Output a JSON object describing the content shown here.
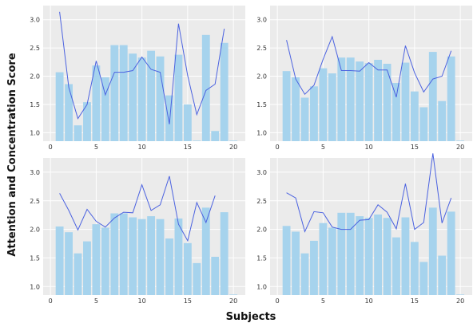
{
  "figure": {
    "ylabel": "Attention and Concentration Score",
    "xlabel": "Subjects",
    "colors": {
      "bar": "#a6d3ed",
      "line": "#4b62e0",
      "panel_bg": "#ebebeb",
      "grid": "#ffffff"
    }
  },
  "chart_data": [
    {
      "type": "bar",
      "x": [
        1,
        2,
        3,
        4,
        5,
        6,
        7,
        8,
        9,
        10,
        11,
        12,
        13,
        14,
        15,
        16,
        17,
        18,
        19,
        20
      ],
      "xticks": [
        0,
        5,
        10,
        15,
        20
      ],
      "yticks": [
        1.0,
        1.5,
        2.0,
        2.5,
        3.0
      ],
      "xlim": [
        -0.8,
        21.3
      ],
      "ylim": [
        0.85,
        3.25
      ],
      "grid": true,
      "series": [
        {
          "kind": "bar",
          "values": [
            2.07,
            1.86,
            1.13,
            1.54,
            2.19,
            1.98,
            2.55,
            2.55,
            2.4,
            2.33,
            2.45,
            2.35,
            1.66,
            2.38,
            1.5,
            0.86,
            2.73,
            1.03,
            2.59,
            0.86
          ]
        },
        {
          "kind": "line",
          "values": [
            3.14,
            1.8,
            1.25,
            1.5,
            2.27,
            1.67,
            2.07,
            2.07,
            2.1,
            2.34,
            2.12,
            2.07,
            1.15,
            2.93,
            2.01,
            1.32,
            1.75,
            1.86,
            2.84,
            null
          ]
        }
      ]
    },
    {
      "type": "bar",
      "x": [
        1,
        2,
        3,
        4,
        5,
        6,
        7,
        8,
        9,
        10,
        11,
        12,
        13,
        14,
        15,
        16,
        17,
        18,
        19,
        20
      ],
      "xticks": [
        0,
        5,
        10,
        15,
        20
      ],
      "yticks": [
        1.0,
        1.5,
        2.0,
        2.5,
        3.0
      ],
      "xlim": [
        -0.8,
        21.3
      ],
      "ylim": [
        0.85,
        3.25
      ],
      "grid": true,
      "series": [
        {
          "kind": "bar",
          "values": [
            2.09,
            1.98,
            1.62,
            1.82,
            2.14,
            2.05,
            2.33,
            2.33,
            2.26,
            2.23,
            2.29,
            2.22,
            1.88,
            2.24,
            1.73,
            1.45,
            2.43,
            1.56,
            2.35,
            0.86
          ]
        },
        {
          "kind": "line",
          "values": [
            2.64,
            1.95,
            1.68,
            1.84,
            2.3,
            2.7,
            2.1,
            2.1,
            2.09,
            2.24,
            2.11,
            2.11,
            1.63,
            2.54,
            2.06,
            1.72,
            1.95,
            2.0,
            2.45,
            null
          ]
        }
      ]
    },
    {
      "type": "bar",
      "x": [
        1,
        2,
        3,
        4,
        5,
        6,
        7,
        8,
        9,
        10,
        11,
        12,
        13,
        14,
        15,
        16,
        17,
        18,
        19,
        20
      ],
      "xticks": [
        0,
        5,
        10,
        15,
        20
      ],
      "yticks": [
        1.0,
        1.5,
        2.0,
        2.5,
        3.0
      ],
      "xlim": [
        -0.8,
        21.3
      ],
      "ylim": [
        0.85,
        3.25
      ],
      "grid": true,
      "series": [
        {
          "kind": "bar",
          "values": [
            2.05,
            1.95,
            1.58,
            1.79,
            2.09,
            2.03,
            2.28,
            2.28,
            2.21,
            2.18,
            2.23,
            2.18,
            1.84,
            2.19,
            1.76,
            1.41,
            2.38,
            1.52,
            2.3,
            0.86
          ]
        },
        {
          "kind": "line",
          "values": [
            2.63,
            2.33,
            1.99,
            2.35,
            2.14,
            2.04,
            2.2,
            2.3,
            2.29,
            2.78,
            2.33,
            2.43,
            2.93,
            2.09,
            1.8,
            2.47,
            2.12,
            2.59,
            null,
            null
          ]
        }
      ]
    },
    {
      "type": "bar",
      "x": [
        1,
        2,
        3,
        4,
        5,
        6,
        7,
        8,
        9,
        10,
        11,
        12,
        13,
        14,
        15,
        16,
        17,
        18,
        19,
        20
      ],
      "xticks": [
        0,
        5,
        10,
        15,
        20
      ],
      "yticks": [
        1.0,
        1.5,
        2.0,
        2.5,
        3.0
      ],
      "xlim": [
        -0.8,
        21.3
      ],
      "ylim": [
        0.85,
        3.25
      ],
      "grid": true,
      "series": [
        {
          "kind": "bar",
          "values": [
            2.06,
            1.96,
            1.58,
            1.8,
            2.11,
            2.03,
            2.29,
            2.29,
            2.23,
            2.2,
            2.26,
            2.2,
            1.86,
            2.21,
            1.78,
            1.43,
            2.38,
            1.54,
            2.31,
            0.86
          ]
        },
        {
          "kind": "line",
          "values": [
            2.64,
            2.55,
            1.96,
            2.31,
            2.29,
            2.04,
            2.0,
            2.0,
            2.16,
            2.17,
            2.43,
            2.3,
            2.01,
            2.8,
            2.0,
            2.12,
            3.33,
            2.11,
            2.55,
            null
          ]
        }
      ]
    }
  ]
}
